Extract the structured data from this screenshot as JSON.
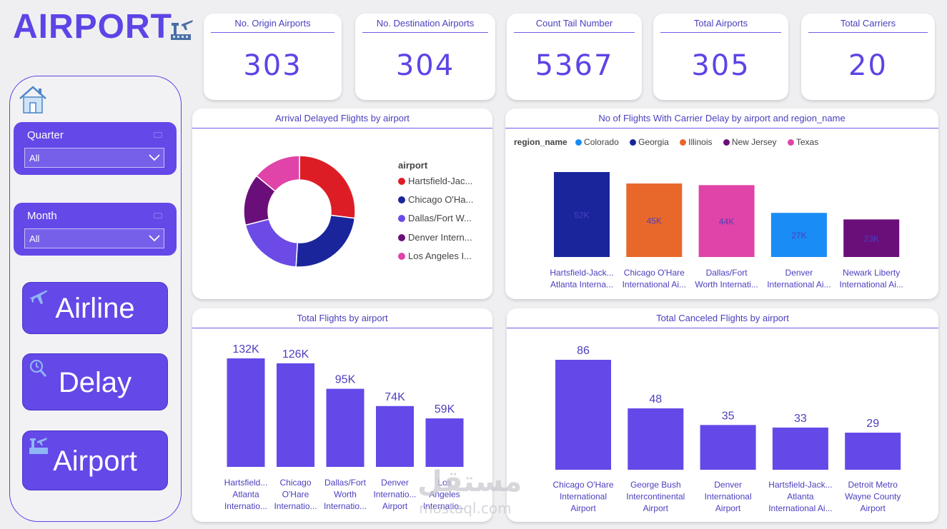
{
  "header": {
    "title": "AIRPORT",
    "icon": "airport-tower-icon"
  },
  "filters": [
    {
      "label": "Quarter",
      "value": "All"
    },
    {
      "label": "Month",
      "value": "All"
    }
  ],
  "nav": [
    {
      "label": "Airline",
      "icon": "airplane-icon"
    },
    {
      "label": "Delay",
      "icon": "clock-search-icon"
    },
    {
      "label": "Airport",
      "icon": "airport-icon"
    }
  ],
  "kpis": [
    {
      "title": "No. Origin Airports",
      "value": "303"
    },
    {
      "title": "No. Destination Airports",
      "value": "304"
    },
    {
      "title": "Count Tail Number",
      "value": "5367"
    },
    {
      "title": "Total Airports",
      "value": "305"
    },
    {
      "title": "Total Carriers",
      "value": "20"
    }
  ],
  "colors": {
    "accent": "#6448e8",
    "bar": "#6448e8",
    "red": "#dd1d26",
    "navy": "#1a259c",
    "purple": "#6b4ae6",
    "darkpurple": "#6a0f7a",
    "pink": "#e044a8",
    "blue": "#1a8cf5",
    "orange": "#e8682c"
  },
  "chart_data": [
    {
      "type": "pie",
      "title": "Arrival Delayed Flights by airport",
      "legend_title": "airport",
      "categories": [
        "Hartsfield-Jac...",
        "Chicago O'Ha...",
        "Dallas/Fort W...",
        "Denver Intern...",
        "Los Angeles I..."
      ],
      "values": [
        27,
        24,
        20,
        15,
        14
      ],
      "colors": [
        "#dd1d26",
        "#1a259c",
        "#6b4ae6",
        "#6a0f7a",
        "#e044a8"
      ]
    },
    {
      "type": "bar",
      "title": "No of Flights With Carrier Delay by airport and region_name",
      "legend_title": "region_name",
      "legend": [
        {
          "name": "Colorado",
          "color": "#1a8cf5"
        },
        {
          "name": "Georgia",
          "color": "#1a259c"
        },
        {
          "name": "Illinois",
          "color": "#e8682c"
        },
        {
          "name": "New Jersey",
          "color": "#6a0f7a"
        },
        {
          "name": "Texas",
          "color": "#e044a8"
        }
      ],
      "categories": [
        [
          "Hartsfield-Jack...",
          "Atlanta Interna..."
        ],
        [
          "Chicago O'Hare",
          "International Ai..."
        ],
        [
          "Dallas/Fort",
          "Worth Internati..."
        ],
        [
          "Denver",
          "International Ai..."
        ],
        [
          "Newark Liberty",
          "International Ai..."
        ]
      ],
      "values": [
        52,
        45,
        44,
        27,
        23
      ],
      "labels": [
        "52K",
        "45K",
        "44K",
        "27K",
        "23K"
      ],
      "colors": [
        "#1a259c",
        "#e8682c",
        "#e044a8",
        "#1a8cf5",
        "#6a0f7a"
      ],
      "ylim": [
        0,
        52
      ]
    },
    {
      "type": "bar",
      "title": "Total Flights by airport",
      "categories": [
        [
          "Hartsfield...",
          "Atlanta",
          "Internatio..."
        ],
        [
          "Chicago",
          "O'Hare",
          "Internatio..."
        ],
        [
          "Dallas/Fort",
          "Worth",
          "Internatio..."
        ],
        [
          "Denver",
          "Internatio...",
          "Airport"
        ],
        [
          "Los",
          "Angeles",
          "Internatio..."
        ]
      ],
      "values": [
        132,
        126,
        95,
        74,
        59
      ],
      "labels": [
        "132K",
        "126K",
        "95K",
        "74K",
        "59K"
      ],
      "ylim": [
        0,
        132
      ]
    },
    {
      "type": "bar",
      "title": "Total Canceled Flights by airport",
      "categories": [
        [
          "Chicago O'Hare",
          "International",
          "Airport"
        ],
        [
          "George Bush",
          "Intercontinental",
          "Airport"
        ],
        [
          "Denver",
          "International",
          "Airport"
        ],
        [
          "Hartsfield-Jack...",
          "Atlanta",
          "International Ai..."
        ],
        [
          "Detroit Metro",
          "Wayne County",
          "Airport"
        ]
      ],
      "values": [
        86,
        48,
        35,
        33,
        29
      ],
      "labels": [
        "86",
        "48",
        "35",
        "33",
        "29"
      ],
      "ylim": [
        0,
        86
      ]
    }
  ],
  "watermark": {
    "arabic": "مستقل",
    "latin": "mostaql.com"
  }
}
